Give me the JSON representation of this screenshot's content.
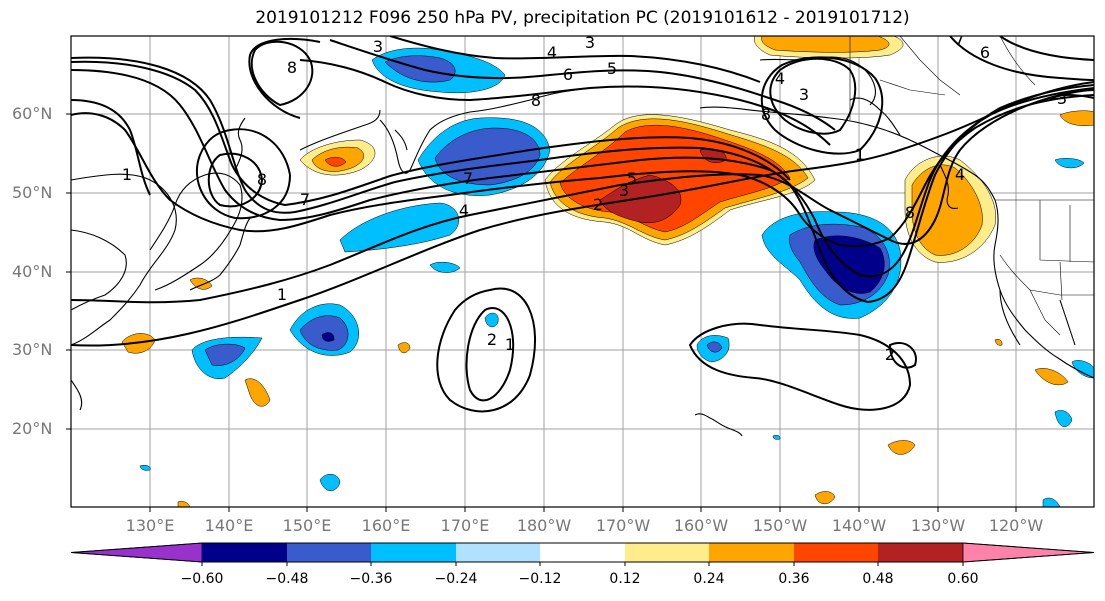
{
  "title": "2019101212 F096 250 hPa PV, precipitation PC (2019101612 - 2019101712)",
  "lat_labels": [
    "60°N",
    "50°N",
    "40°N",
    "30°N",
    "20°N"
  ],
  "lon_labels": [
    "130°E",
    "140°E",
    "150°E",
    "160°E",
    "170°E",
    "180°W",
    "170°W",
    "160°W",
    "150°W",
    "140°W",
    "130°W",
    "120°W"
  ],
  "colorbar": {
    "colors": [
      "#9932CC",
      "#00008B",
      "#3A5BCB",
      "#00BFFF",
      "#B0E2FF",
      "#FFFFFF",
      "#FFEC8B",
      "#FFA500",
      "#FF4500",
      "#B22222",
      "#FF82AB"
    ],
    "tick_labels": [
      "−0.60",
      "−0.48",
      "−0.36",
      "−0.24",
      "−0.12",
      "0.12",
      "0.24",
      "0.36",
      "0.48",
      "0.60"
    ]
  },
  "contour_labels": [
    "3",
    "4",
    "6",
    "5",
    "8",
    "8",
    "4",
    "3",
    "3",
    "6",
    "7",
    "7",
    "8",
    "7",
    "1",
    "4",
    "2",
    "3",
    "5",
    "1",
    "8",
    "4",
    "1",
    "2",
    "2",
    "1",
    "3",
    "8"
  ],
  "colors": {
    "frame": "#000000",
    "grid": "#a0a0a0",
    "coast": "#000000",
    "pv_contour": "#000000"
  }
}
